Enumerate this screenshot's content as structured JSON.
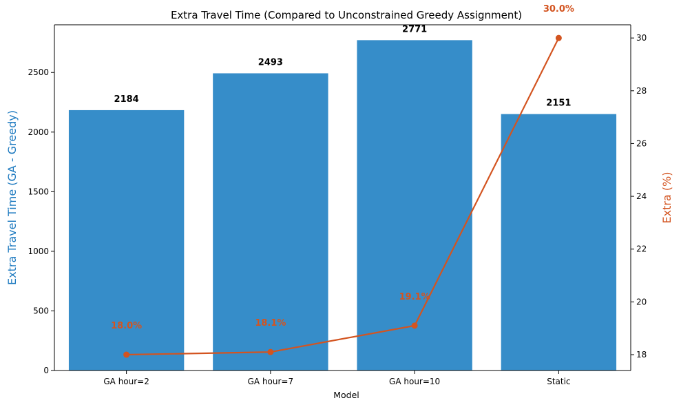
{
  "colors": {
    "bar": "#368dc9",
    "line": "#d35420",
    "left_axis_title": "#1f7bc0",
    "right_axis_title": "#d35420"
  },
  "chart_data": {
    "type": "bar",
    "title": "Extra Travel Time (Compared to Unconstrained Greedy Assignment)",
    "xlabel": "Model",
    "ylabel": "Extra Travel Time (GA - Greedy)",
    "y2label": "Extra (%)",
    "categories": [
      "GA hour=2",
      "GA hour=7",
      "GA hour=10",
      "Static"
    ],
    "series": [
      {
        "axis": "left",
        "kind": "bar",
        "values": [
          2184,
          2493,
          2771,
          2151
        ],
        "labels": [
          "2184",
          "2493",
          "2771",
          "2151"
        ]
      },
      {
        "axis": "right",
        "kind": "line",
        "values": [
          18.0,
          18.1,
          19.1,
          30.0
        ],
        "labels": [
          "18.0%",
          "18.1%",
          "19.1%",
          "30.0%"
        ]
      }
    ],
    "ylim": [
      0,
      2900
    ],
    "yticks": [
      0,
      500,
      1000,
      1500,
      2000,
      2500
    ],
    "y2lim": [
      17.4,
      30.5
    ],
    "y2ticks": [
      18,
      20,
      22,
      24,
      26,
      28,
      30
    ],
    "grid": false,
    "legend": "none"
  }
}
